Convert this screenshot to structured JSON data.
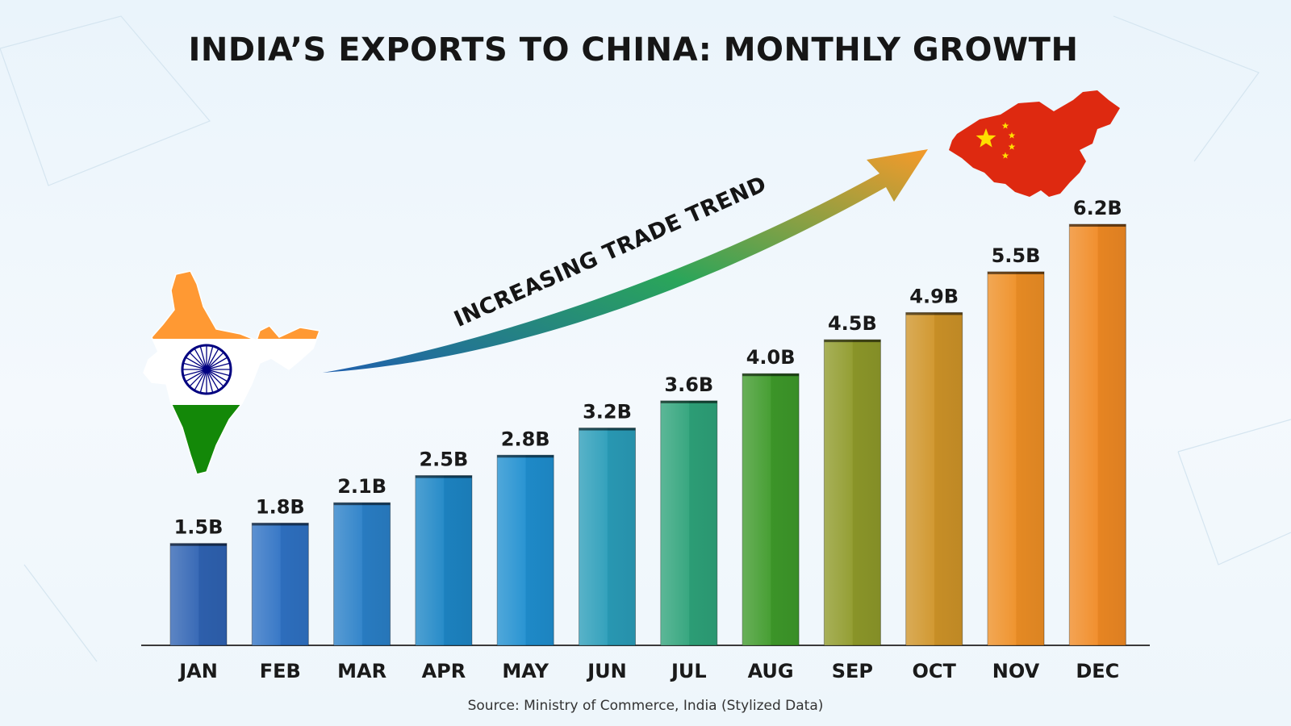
{
  "chart_data": {
    "type": "bar",
    "title": "INDIA’S EXPORTS TO CHINA: MONTHLY GROWTH",
    "categories": [
      "JAN",
      "FEB",
      "MAR",
      "APR",
      "MAY",
      "JUN",
      "JUL",
      "AUG",
      "SEP",
      "OCT",
      "NOV",
      "DEC"
    ],
    "series": [
      {
        "values": [
          1.5,
          1.8,
          2.1,
          2.5,
          2.8,
          3.2,
          3.6,
          4.0,
          4.5,
          4.9,
          5.5,
          6.2
        ]
      }
    ],
    "data_labels": [
      "1.5B",
      "1.8B",
      "2.1B",
      "2.5B",
      "2.8B",
      "3.2B",
      "3.6B",
      "4.0B",
      "4.5B",
      "4.9B",
      "5.5B",
      "6.2B"
    ],
    "unit": "B",
    "ylim": [
      0,
      6.2
    ],
    "xlabel": "",
    "ylabel": "",
    "grid": false,
    "annotation": "INCREASING TRADE TREND",
    "source": "Source: Ministry of Commerce, India (Stylized Data)",
    "bar_colors": [
      "#2f63b3",
      "#2f72c4",
      "#2a80c8",
      "#1d86c6",
      "#1f8fd0",
      "#2a9db9",
      "#2ea37a",
      "#3e9a2a",
      "#8f9a2a",
      "#cf9428",
      "#ee8f25",
      "#f08a24"
    ],
    "arrow_gradient": [
      "#1f5fae",
      "#2aa55a",
      "#f59a2a"
    ],
    "india_flag_colors": [
      "#ff9933",
      "#ffffff",
      "#138808",
      "#000080"
    ],
    "china_colors": [
      "#de2910",
      "#ffde00"
    ]
  }
}
